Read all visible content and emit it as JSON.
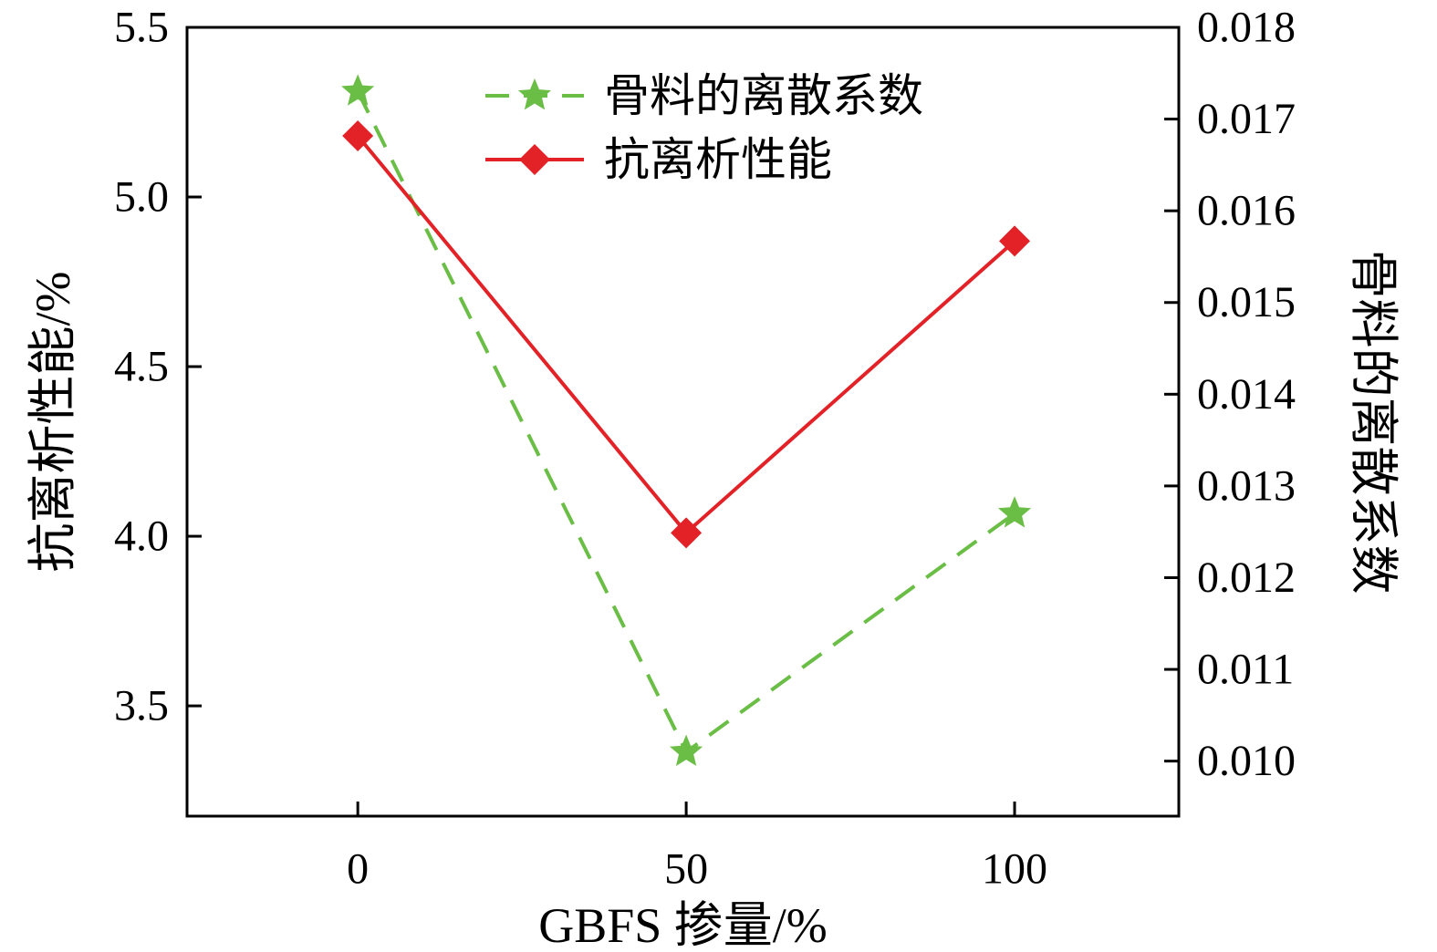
{
  "chart_data": {
    "type": "line",
    "title": "",
    "x": [
      0,
      50,
      100
    ],
    "x_tick_labels": [
      "0",
      "50",
      "100"
    ],
    "xlabel": "GBFS 掺量/%",
    "xlim": [
      -26,
      125
    ],
    "grid": false,
    "legend_position": "top-center-inside",
    "left_axis": {
      "label": "抗离析性能/%",
      "ticks": [
        3.5,
        4.0,
        4.5,
        5.0,
        5.5
      ],
      "tick_labels": [
        "3.5",
        "4.0",
        "4.5",
        "5.0",
        "5.5"
      ],
      "ylim": [
        3.175,
        5.5
      ]
    },
    "right_axis": {
      "label": "骨料的离散系数",
      "ticks": [
        0.01,
        0.011,
        0.012,
        0.013,
        0.014,
        0.015,
        0.016,
        0.017,
        0.018
      ],
      "tick_labels": [
        "0.010",
        "0.011",
        "0.012",
        "0.013",
        "0.014",
        "0.015",
        "0.016",
        "0.017",
        "0.018"
      ],
      "ylim": [
        0.0094,
        0.018
      ]
    },
    "series": [
      {
        "id": "aggregate-dispersion-coefficient",
        "name": "骨料的离散系数",
        "axis": "right",
        "values": [
          0.0173,
          0.0101,
          0.0127
        ],
        "color": "#6abe45",
        "line_style": "dashed",
        "marker": "star"
      },
      {
        "id": "anti-segregation-performance",
        "name": "抗离析性能",
        "axis": "left",
        "values": [
          5.18,
          4.01,
          4.87
        ],
        "color": "#e32227",
        "line_style": "solid",
        "marker": "diamond"
      }
    ]
  },
  "colors": {
    "axis": "#000000",
    "background": "#ffffff",
    "green_series": "#6abe45",
    "red_series": "#e32227"
  }
}
